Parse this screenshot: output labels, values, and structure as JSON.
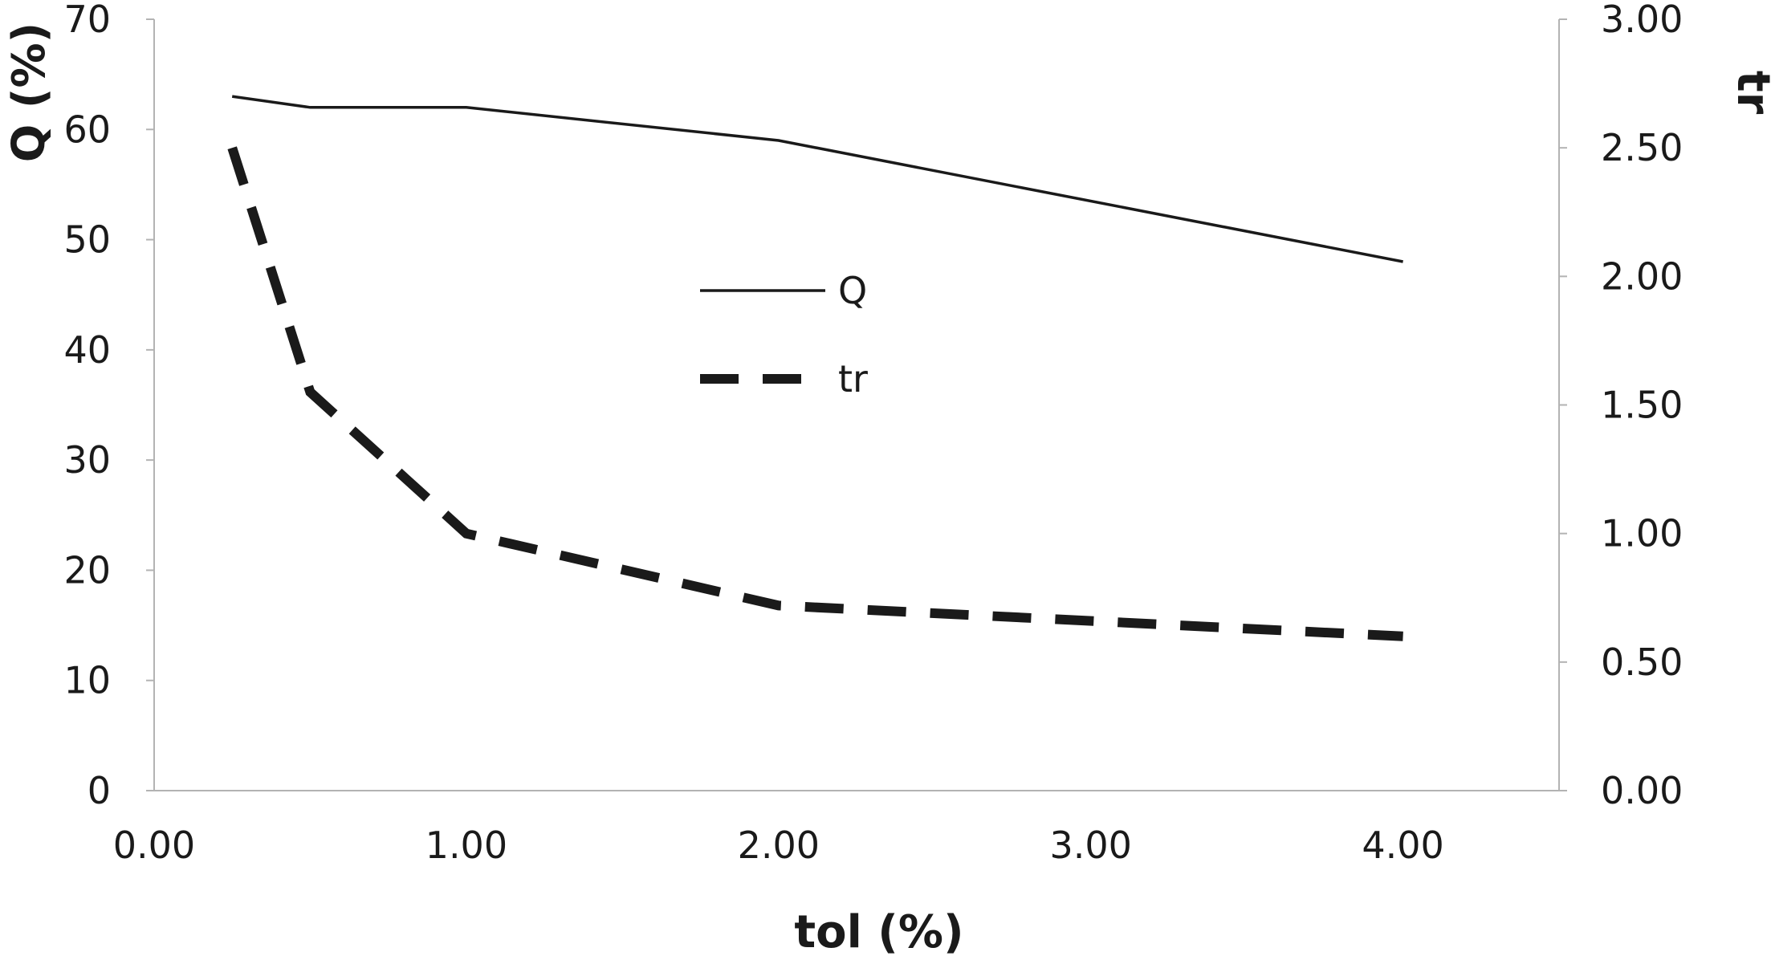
{
  "chart_data": {
    "type": "line",
    "xlabel": "tol (%)",
    "ylabel": "Q (%)",
    "y2label": "tr",
    "xlim": [
      0,
      4.5
    ],
    "ylim": [
      0,
      70
    ],
    "y2lim": [
      0,
      3
    ],
    "x_ticks": [
      "0.00",
      "1.00",
      "2.00",
      "3.00",
      "4.00"
    ],
    "x_tick_values": [
      0,
      1,
      2,
      3,
      4
    ],
    "y_ticks": [
      "0",
      "10",
      "20",
      "30",
      "40",
      "50",
      "60",
      "70"
    ],
    "y_tick_values": [
      0,
      10,
      20,
      30,
      40,
      50,
      60,
      70
    ],
    "y2_ticks": [
      "0.00",
      "0.50",
      "1.00",
      "1.50",
      "2.00",
      "2.50",
      "3.00"
    ],
    "y2_tick_values": [
      0,
      0.5,
      1,
      1.5,
      2,
      2.5,
      3
    ],
    "grid": false,
    "legend_position": "center",
    "series": [
      {
        "name": "Q",
        "axis": "left",
        "style": "solid",
        "x": [
          0.25,
          0.5,
          1.0,
          2.0,
          4.0
        ],
        "values": [
          63,
          62,
          62,
          59,
          48
        ]
      },
      {
        "name": "tr",
        "axis": "right",
        "style": "dashed",
        "x": [
          0.25,
          0.5,
          1.0,
          2.0,
          4.0
        ],
        "values": [
          2.5,
          1.55,
          1.0,
          0.72,
          0.6
        ]
      }
    ]
  }
}
